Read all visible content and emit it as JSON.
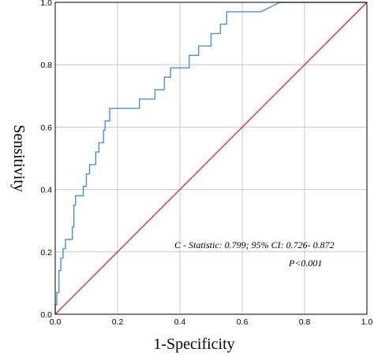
{
  "chart_data": {
    "type": "line",
    "title": "",
    "xlabel": "1-Specificity",
    "ylabel": "Sensitivity",
    "xlim": [
      0,
      1
    ],
    "ylim": [
      0,
      1
    ],
    "x_ticks": [
      "0.0",
      "0.2",
      "0.4",
      "0.6",
      "0.8",
      "1.0"
    ],
    "y_ticks": [
      "0.0",
      "0.2",
      "0.4",
      "0.6",
      "0.8",
      "1.0"
    ],
    "grid": true,
    "legend": "none",
    "annotations": [
      "C - Statistic: 0.799; 95% CI: 0.726- 0.872",
      "P<0.001"
    ],
    "series": [
      {
        "color": "#4a90d9",
        "points": [
          [
            0.0,
            0.0
          ],
          [
            0.0,
            0.03
          ],
          [
            0.005,
            0.03
          ],
          [
            0.005,
            0.07
          ],
          [
            0.012,
            0.07
          ],
          [
            0.012,
            0.14
          ],
          [
            0.018,
            0.14
          ],
          [
            0.018,
            0.18
          ],
          [
            0.025,
            0.18
          ],
          [
            0.025,
            0.21
          ],
          [
            0.033,
            0.21
          ],
          [
            0.033,
            0.24
          ],
          [
            0.055,
            0.24
          ],
          [
            0.055,
            0.28
          ],
          [
            0.06,
            0.28
          ],
          [
            0.06,
            0.35
          ],
          [
            0.065,
            0.35
          ],
          [
            0.065,
            0.38
          ],
          [
            0.09,
            0.38
          ],
          [
            0.09,
            0.41
          ],
          [
            0.1,
            0.41
          ],
          [
            0.1,
            0.45
          ],
          [
            0.11,
            0.45
          ],
          [
            0.11,
            0.48
          ],
          [
            0.13,
            0.48
          ],
          [
            0.13,
            0.52
          ],
          [
            0.14,
            0.52
          ],
          [
            0.14,
            0.55
          ],
          [
            0.155,
            0.55
          ],
          [
            0.155,
            0.59
          ],
          [
            0.16,
            0.59
          ],
          [
            0.16,
            0.62
          ],
          [
            0.175,
            0.62
          ],
          [
            0.175,
            0.66
          ],
          [
            0.27,
            0.66
          ],
          [
            0.27,
            0.69
          ],
          [
            0.32,
            0.69
          ],
          [
            0.32,
            0.72
          ],
          [
            0.35,
            0.72
          ],
          [
            0.35,
            0.76
          ],
          [
            0.37,
            0.76
          ],
          [
            0.37,
            0.79
          ],
          [
            0.43,
            0.79
          ],
          [
            0.43,
            0.83
          ],
          [
            0.46,
            0.83
          ],
          [
            0.46,
            0.86
          ],
          [
            0.5,
            0.86
          ],
          [
            0.5,
            0.9
          ],
          [
            0.53,
            0.9
          ],
          [
            0.53,
            0.93
          ],
          [
            0.55,
            0.93
          ],
          [
            0.55,
            0.97
          ],
          [
            0.66,
            0.97
          ],
          [
            0.7,
            0.99
          ],
          [
            0.72,
            1.0
          ],
          [
            1.0,
            1.0
          ]
        ]
      },
      {
        "color": "#d7263d",
        "points": [
          [
            0.0,
            0.0
          ],
          [
            1.0,
            1.0
          ]
        ]
      }
    ]
  }
}
